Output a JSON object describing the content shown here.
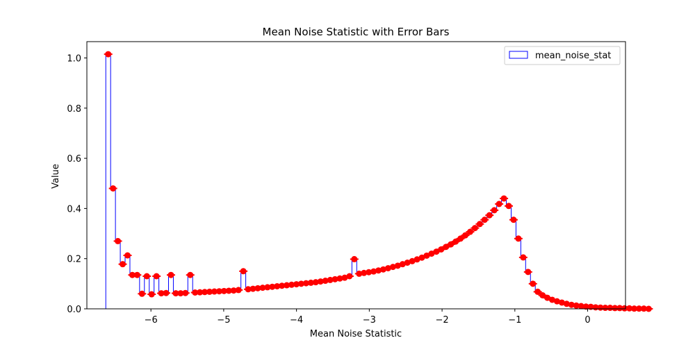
{
  "chart_data": {
    "type": "bar",
    "title": "Mean Noise Statistic with Error Bars",
    "xlabel": "Mean Noise Statistic",
    "ylabel": "Value",
    "xlim": [
      -6.88,
      0.52
    ],
    "ylim": [
      0,
      1.065
    ],
    "xticks": [
      -6,
      -5,
      -4,
      -3,
      -2,
      -1,
      0
    ],
    "xtick_labels": [
      "−6",
      "−5",
      "−4",
      "−3",
      "−2",
      "−1",
      "0"
    ],
    "yticks": [
      0.0,
      0.2,
      0.4,
      0.6,
      0.8,
      1.0
    ],
    "ytick_labels": [
      "0.0",
      "0.2",
      "0.4",
      "0.6",
      "0.8",
      "1.0"
    ],
    "grid": false,
    "legend": {
      "position": "top-right",
      "entries": [
        "mean_noise_stat"
      ]
    },
    "series": [
      {
        "name": "mean_noise_stat",
        "style": "step histogram with error bar markers",
        "bar_edge_color": "#0000ff",
        "marker_color": "#ff0000",
        "bin_left_edge": -6.62,
        "bin_width": 0.0663,
        "values": [
          1.015,
          0.48,
          0.27,
          0.178,
          0.213,
          0.135,
          0.135,
          0.06,
          0.13,
          0.058,
          0.13,
          0.062,
          0.063,
          0.135,
          0.062,
          0.062,
          0.063,
          0.135,
          0.065,
          0.066,
          0.067,
          0.068,
          0.069,
          0.07,
          0.071,
          0.072,
          0.073,
          0.075,
          0.15,
          0.078,
          0.08,
          0.082,
          0.084,
          0.086,
          0.088,
          0.09,
          0.092,
          0.094,
          0.096,
          0.098,
          0.1,
          0.102,
          0.104,
          0.106,
          0.109,
          0.112,
          0.115,
          0.118,
          0.121,
          0.124,
          0.13,
          0.198,
          0.14,
          0.143,
          0.146,
          0.149,
          0.153,
          0.157,
          0.162,
          0.167,
          0.172,
          0.178,
          0.184,
          0.19,
          0.197,
          0.204,
          0.212,
          0.22,
          0.228,
          0.237,
          0.247,
          0.257,
          0.268,
          0.28,
          0.293,
          0.307,
          0.322,
          0.338,
          0.355,
          0.373,
          0.393,
          0.418,
          0.44,
          0.41,
          0.355,
          0.28,
          0.205,
          0.147,
          0.1,
          0.068,
          0.054,
          0.044,
          0.036,
          0.03,
          0.025,
          0.02,
          0.016,
          0.013,
          0.011,
          0.009,
          0.008,
          0.006,
          0.005,
          0.004,
          0.004,
          0.003,
          0.003,
          0.002,
          0.002,
          0.001,
          0.001,
          0.001,
          0.0
        ]
      }
    ]
  }
}
